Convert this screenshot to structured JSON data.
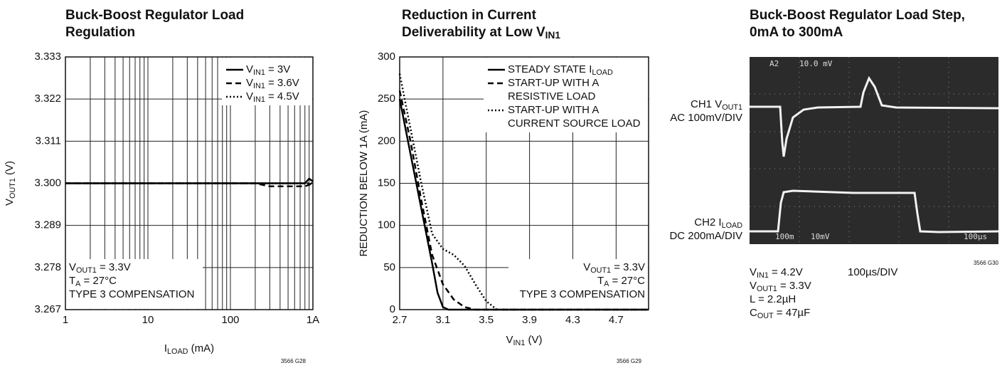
{
  "chart_data": [
    {
      "type": "line",
      "title": [
        [
          "Buck-Boost Regulator Load"
        ],
        [
          "Regulation"
        ]
      ],
      "xlabel": [
        [
          "I",
          "LOAD",
          " (mA)"
        ]
      ],
      "ylabel": [
        [
          "V",
          "OUT1",
          " (V)"
        ]
      ],
      "xlog": true,
      "xlim": [
        1,
        1000
      ],
      "xticks": [
        1,
        10,
        100,
        {
          "value": 1000,
          "label": "1A"
        }
      ],
      "ylim": [
        3.267,
        3.333
      ],
      "yticks": [
        3.267,
        3.278,
        3.289,
        {
          "value": 3.3,
          "label": "3.300"
        },
        3.311,
        3.322,
        3.333
      ],
      "grid": true,
      "legend": "upper right",
      "series": [
        {
          "name": [
            [
              "V",
              "IN1",
              " = 3V"
            ]
          ],
          "color": "#000000",
          "dash": "solid",
          "x": [
            1,
            100,
            800,
            900,
            1000
          ],
          "values": [
            3.3,
            3.3,
            3.3,
            3.3012,
            3.3005
          ]
        },
        {
          "name": [
            [
              "V",
              "IN1",
              " = 3.6V"
            ]
          ],
          "color": "#000000",
          "dash": "dashed",
          "x": [
            1,
            200,
            300,
            800,
            1000
          ],
          "values": [
            3.3,
            3.3,
            3.2992,
            3.2992,
            3.3
          ]
        },
        {
          "name": [
            [
              "V",
              "IN1",
              " = 4.5V"
            ]
          ],
          "color": "#000000",
          "dash": "dotted",
          "x": [
            1,
            1000
          ],
          "values": [
            3.3,
            3.3
          ]
        }
      ],
      "annotation_corner": "lower left",
      "annotation": [
        [
          "V",
          "OUT1",
          " = 3.3V"
        ],
        [
          "T",
          "A",
          " = 27°C"
        ],
        [
          "TYPE 3 COMPENSATION"
        ]
      ],
      "footnote": "3566 G28"
    },
    {
      "type": "line",
      "title": [
        [
          "Reduction in Current"
        ],
        [
          "Deliverability at Low V",
          "IN1"
        ]
      ],
      "xlabel": [
        [
          "V",
          "IN1",
          " (V)"
        ]
      ],
      "ylabel": "REDUCTION BELOW 1A (mA)",
      "xlog": false,
      "xlim": [
        2.7,
        5.0
      ],
      "xticks": [
        2.7,
        3.1,
        3.5,
        3.9,
        4.3,
        4.7
      ],
      "ylim": [
        0,
        300
      ],
      "yticks": [
        0,
        50,
        100,
        150,
        200,
        250,
        300
      ],
      "grid": true,
      "legend": "upper right",
      "series": [
        {
          "name": [
            [
              "STEADY STATE I",
              "LOAD"
            ]
          ],
          "color": "#000000",
          "dash": "solid",
          "x": [
            2.7,
            2.8,
            2.9,
            3.0,
            3.05,
            3.1,
            3.15,
            5.0
          ],
          "values": [
            250,
            185,
            120,
            55,
            20,
            3,
            0,
            0
          ]
        },
        {
          "name": [
            [
              "START-UP WITH A"
            ],
            [
              "RESISTIVE LOAD"
            ]
          ],
          "color": "#000000",
          "dash": "dashed",
          "x": [
            2.7,
            2.8,
            2.9,
            3.0,
            3.1,
            3.2,
            3.3,
            3.4,
            5.0
          ],
          "values": [
            260,
            200,
            130,
            65,
            30,
            12,
            3,
            0,
            0
          ]
        },
        {
          "name": [
            [
              "START-UP WITH A"
            ],
            [
              "CURRENT SOURCE LOAD"
            ]
          ],
          "color": "#000000",
          "dash": "dotted",
          "x": [
            2.7,
            2.8,
            2.9,
            3.0,
            3.1,
            3.2,
            3.3,
            3.4,
            3.5,
            3.6,
            5.0
          ],
          "values": [
            280,
            215,
            150,
            90,
            72,
            65,
            52,
            30,
            10,
            0,
            0
          ]
        }
      ],
      "annotation_corner": "lower right",
      "annotation": [
        [
          "V",
          "OUT1",
          " = 3.3V"
        ],
        [
          "T",
          "A",
          " = 27°C"
        ],
        [
          "TYPE 3 COMPENSATION"
        ]
      ],
      "footnote": "3566 G29"
    }
  ],
  "scope": {
    "title": [
      [
        "Buck-Boost Regulator Load Step,"
      ],
      [
        "0mA to 300mA"
      ]
    ],
    "ch1": [
      [
        "CH1 V",
        "OUT1"
      ],
      [
        "AC 100mV/DIV"
      ]
    ],
    "ch2": [
      [
        "CH2 I",
        "LOAD"
      ],
      [
        "DC 200mA/DIV"
      ]
    ],
    "screen_top": [
      "A2",
      "10.0 mV"
    ],
    "screen_bottom": [
      "100m",
      "10mV",
      "100µs"
    ],
    "conditions": [
      [
        "V",
        "IN1",
        " = 4.2V"
      ],
      [
        "V",
        "OUT1",
        " = 3.3V"
      ],
      [
        "L = 2.2µH"
      ],
      [
        "C",
        "OUT",
        " = 47µF"
      ]
    ],
    "timebase": "100µs/DIV",
    "footnote": "3566 G30"
  }
}
